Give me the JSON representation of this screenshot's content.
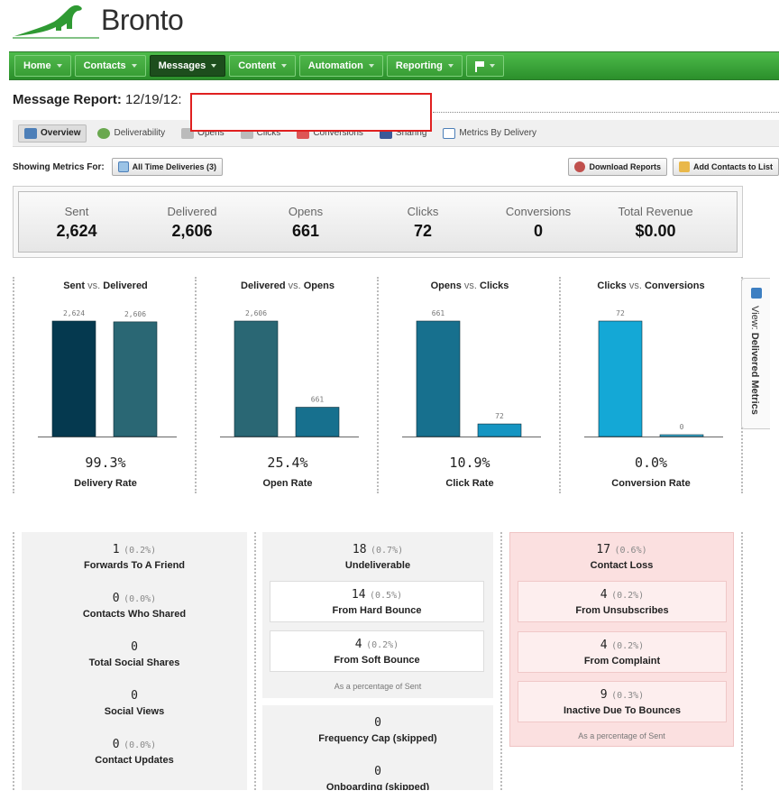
{
  "brand": {
    "name": "Bronto"
  },
  "nav": {
    "items": [
      {
        "label": "Home"
      },
      {
        "label": "Contacts"
      },
      {
        "label": "Messages",
        "active": true
      },
      {
        "label": "Content"
      },
      {
        "label": "Automation"
      },
      {
        "label": "Reporting"
      }
    ]
  },
  "title": {
    "label": "Message Report:",
    "date": "12/19/12:"
  },
  "tabs": [
    {
      "label": "Overview",
      "active": true
    },
    {
      "label": "Deliverability"
    },
    {
      "label": "Opens"
    },
    {
      "label": "Clicks"
    },
    {
      "label": "Conversions"
    },
    {
      "label": "Sharing"
    },
    {
      "label": "Metrics By Delivery"
    }
  ],
  "metrics_for": {
    "label": "Showing Metrics For:",
    "selector": "All Time Deliveries (3)",
    "download": "Download Reports",
    "add_contacts": "Add Contacts to List"
  },
  "summary": [
    {
      "label": "Sent",
      "value": "2,624"
    },
    {
      "label": "Delivered",
      "value": "2,606"
    },
    {
      "label": "Opens",
      "value": "661"
    },
    {
      "label": "Clicks",
      "value": "72"
    },
    {
      "label": "Conversions",
      "value": "0"
    },
    {
      "label": "Total Revenue",
      "value": "$0.00"
    }
  ],
  "chart_data": [
    {
      "type": "bar",
      "title_a": "Sent",
      "vs": "vs.",
      "title_b": "Delivered",
      "categories": [
        "Sent",
        "Delivered"
      ],
      "values": [
        2624,
        2606
      ],
      "labels": [
        "2,624",
        "2,606"
      ],
      "colors": [
        "#05394f",
        "#2a6774"
      ],
      "rate": "99.3%",
      "rate_label": "Delivery Rate"
    },
    {
      "type": "bar",
      "title_a": "Delivered",
      "vs": "vs.",
      "title_b": "Opens",
      "categories": [
        "Delivered",
        "Opens"
      ],
      "values": [
        2606,
        661
      ],
      "labels": [
        "2,606",
        "661"
      ],
      "colors": [
        "#2a6774",
        "#17708e"
      ],
      "rate": "25.4%",
      "rate_label": "Open Rate"
    },
    {
      "type": "bar",
      "title_a": "Opens",
      "vs": "vs.",
      "title_b": "Clicks",
      "categories": [
        "Opens",
        "Clicks"
      ],
      "values": [
        661,
        72
      ],
      "labels": [
        "661",
        "72"
      ],
      "colors": [
        "#17708e",
        "#1595c2"
      ],
      "rate": "10.9%",
      "rate_label": "Click Rate"
    },
    {
      "type": "bar",
      "title_a": "Clicks",
      "vs": "vs.",
      "title_b": "Conversions",
      "categories": [
        "Clicks",
        "Conversions"
      ],
      "values": [
        72,
        0
      ],
      "labels": [
        "72",
        "0"
      ],
      "colors": [
        "#14a8d6",
        "#3cb6dc"
      ],
      "rate": "0.0%",
      "rate_label": "Conversion Rate"
    }
  ],
  "side_tab": {
    "prefix": "View:",
    "label": "Delivered Metrics"
  },
  "social": [
    {
      "value": "1",
      "pct": "(0.2%)",
      "label": "Forwards To A Friend"
    },
    {
      "value": "0",
      "pct": "(0.0%)",
      "label": "Contacts Who Shared"
    },
    {
      "value": "0",
      "pct": "",
      "label": "Total Social Shares"
    },
    {
      "value": "0",
      "pct": "",
      "label": "Social Views"
    },
    {
      "value": "0",
      "pct": "(0.0%)",
      "label": "Contact Updates"
    }
  ],
  "undeliverable": {
    "value": "18",
    "pct": "(0.7%)",
    "label": "Undeliverable",
    "hard": {
      "value": "14",
      "pct": "(0.5%)",
      "label": "From Hard Bounce"
    },
    "soft": {
      "value": "4",
      "pct": "(0.2%)",
      "label": "From Soft Bounce"
    },
    "note": "As a percentage of Sent"
  },
  "skipped": [
    {
      "value": "0",
      "label": "Frequency Cap (skipped)"
    },
    {
      "value": "0",
      "label": "Onboarding (skipped)"
    }
  ],
  "contact_loss": {
    "value": "17",
    "pct": "(0.6%)",
    "label": "Contact Loss",
    "items": [
      {
        "value": "4",
        "pct": "(0.2%)",
        "label": "From Unsubscribes"
      },
      {
        "value": "4",
        "pct": "(0.2%)",
        "label": "From Complaint"
      },
      {
        "value": "9",
        "pct": "(0.3%)",
        "label": "Inactive Due To Bounces"
      }
    ],
    "note": "As a percentage of Sent"
  }
}
